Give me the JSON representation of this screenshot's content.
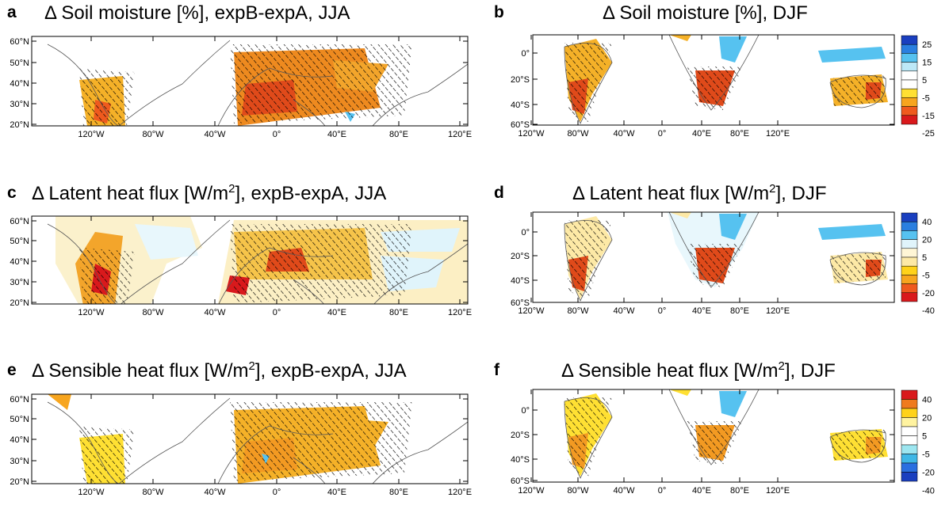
{
  "chart_data": [
    {
      "id": "a",
      "label": "a",
      "type": "heatmap",
      "title_prefix": "Δ Soil moisture [%]",
      "title_sup": "",
      "title_suffix": ", expB-expA, JJA",
      "xticks": [
        "120°W",
        "80°W",
        "40°W",
        "0°",
        "40°E",
        "80°E",
        "120°E"
      ],
      "yticks": [
        "60°N",
        "50°N",
        "40°N",
        "30°N",
        "20°N"
      ]
    },
    {
      "id": "b",
      "label": "b",
      "type": "heatmap",
      "title_prefix": "Δ Soil moisture [%]",
      "title_sup": "",
      "title_suffix": ", DJF",
      "xticks": [
        "120°W",
        "80°W",
        "40°W",
        "0°",
        "40°E",
        "80°E",
        "120°E"
      ],
      "yticks": [
        "0°",
        "20°S",
        "40°S",
        "60°S"
      ],
      "colorbar": {
        "labels": [
          "25",
          "15",
          "5",
          "-5",
          "-15",
          "-25"
        ],
        "colors": [
          "#1a3fbf",
          "#2a7fe0",
          "#56c2f0",
          "#bde8f7",
          "#ffffff",
          "#ffffff",
          "#ffe033",
          "#f7a51e",
          "#ef5a1e",
          "#d9191c"
        ]
      }
    },
    {
      "id": "c",
      "label": "c",
      "type": "heatmap",
      "title_prefix": "Δ Latent heat flux [W/m",
      "title_sup": "2",
      "title_suffix": "], expB-expA, JJA",
      "xticks": [
        "120°W",
        "80°W",
        "40°W",
        "0°",
        "40°E",
        "80°E",
        "120°E"
      ],
      "yticks": [
        "60°N",
        "50°N",
        "40°N",
        "30°N",
        "20°N"
      ]
    },
    {
      "id": "d",
      "label": "d",
      "type": "heatmap",
      "title_prefix": "Δ Latent heat flux [W/m",
      "title_sup": "2",
      "title_suffix": "], DJF",
      "xticks": [
        "120°W",
        "80°W",
        "40°W",
        "0°",
        "40°E",
        "80°E",
        "120°E"
      ],
      "yticks": [
        "0°",
        "20°S",
        "40°S",
        "60°S"
      ],
      "colorbar": {
        "labels": [
          "40",
          "20",
          "5",
          "-5",
          "-20",
          "-40"
        ],
        "colors": [
          "#1a3fbf",
          "#2a7fe0",
          "#56c2f0",
          "#e0f4fb",
          "#fff6d6",
          "#fde9a6",
          "#ffd21a",
          "#f7a51e",
          "#ef5a1e",
          "#d9191c"
        ]
      }
    },
    {
      "id": "e",
      "label": "e",
      "type": "heatmap",
      "title_prefix": "Δ Sensible heat flux [W/m",
      "title_sup": "2",
      "title_suffix": "], expB-expA, JJA",
      "xticks": [
        "120°W",
        "80°W",
        "40°W",
        "0°",
        "40°E",
        "80°E",
        "120°E"
      ],
      "yticks": [
        "60°N",
        "50°N",
        "40°N",
        "30°N",
        "20°N"
      ]
    },
    {
      "id": "f",
      "label": "f",
      "type": "heatmap",
      "title_prefix": "Δ Sensible heat flux [W/m",
      "title_sup": "2",
      "title_suffix": "], DJF",
      "xticks": [
        "120°W",
        "80°W",
        "40°W",
        "0°",
        "40°E",
        "80°E",
        "120°E"
      ],
      "yticks": [
        "0°",
        "20°S",
        "40°S",
        "60°S"
      ],
      "colorbar": {
        "labels": [
          "40",
          "20",
          "5",
          "-5",
          "-20",
          "-40"
        ],
        "colors": [
          "#d9191c",
          "#ef7a1e",
          "#ffd21a",
          "#fff3a0",
          "#ffffff",
          "#ffffff",
          "#9de6f0",
          "#3fb7e6",
          "#2a6fe0",
          "#1a3fbf"
        ]
      }
    }
  ]
}
